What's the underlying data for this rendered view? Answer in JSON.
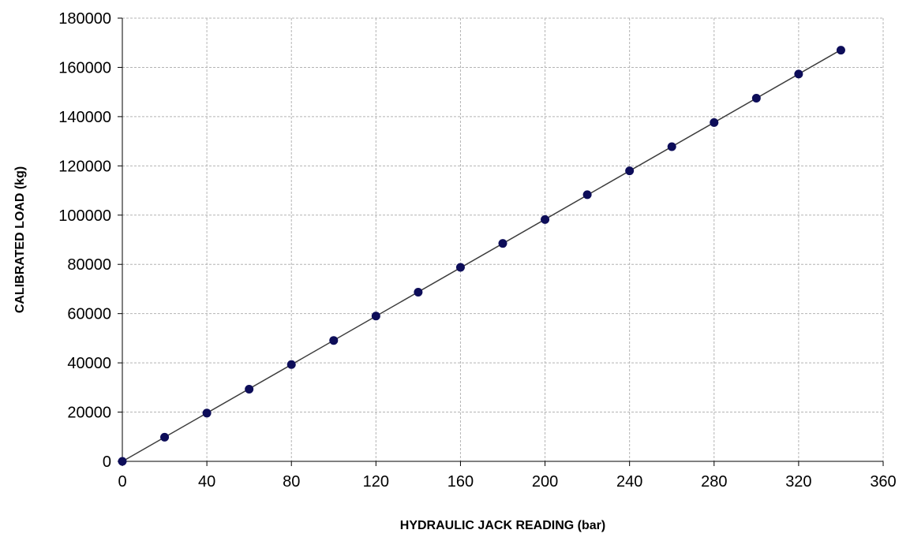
{
  "chart_data": {
    "type": "scatter",
    "title": "",
    "xlabel": "HYDRAULIC  JACK  READING  (bar)",
    "ylabel": "CALIBRATED  LOAD  (kg)",
    "xlim": [
      0,
      360
    ],
    "ylim": [
      0,
      180000
    ],
    "x_ticks": [
      0,
      40,
      80,
      120,
      160,
      200,
      240,
      280,
      320,
      360
    ],
    "y_ticks": [
      0,
      20000,
      40000,
      60000,
      80000,
      100000,
      120000,
      140000,
      160000,
      180000
    ],
    "grid": true,
    "trendline": true,
    "colors": {
      "marker": "#0d0d59",
      "trendline": "#3c3c3c",
      "grid": "#b4b4b4"
    },
    "series": [
      {
        "x": [
          0,
          20,
          40,
          60,
          80,
          100,
          120,
          140,
          160,
          180,
          200,
          220,
          240,
          260,
          280,
          300,
          320,
          340
        ],
        "y": [
          0,
          9800,
          19600,
          29300,
          39300,
          49100,
          59000,
          68700,
          78800,
          88500,
          98200,
          108300,
          118000,
          127800,
          137600,
          147500,
          157300,
          167000
        ]
      }
    ]
  }
}
